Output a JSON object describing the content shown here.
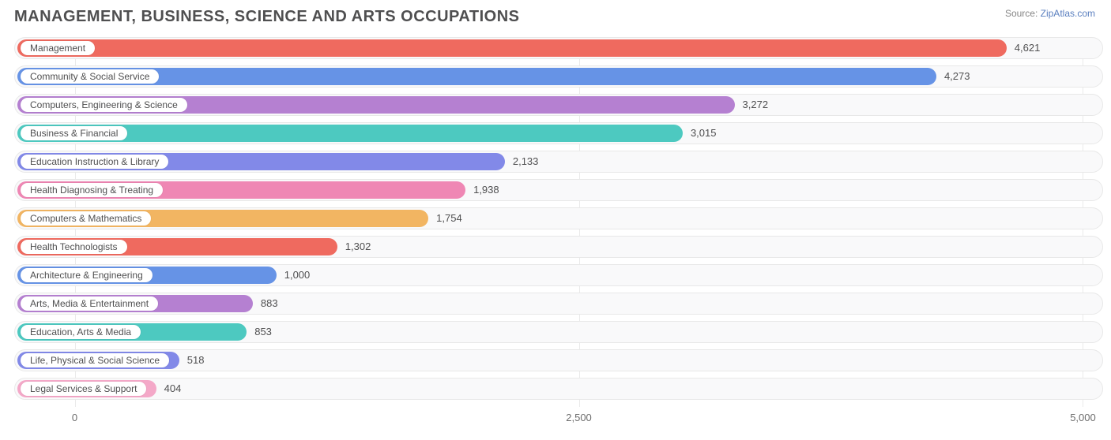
{
  "title": "MANAGEMENT, BUSINESS, SCIENCE AND ARTS OCCUPATIONS",
  "source_prefix": "Source: ",
  "source_link": "ZipAtlas.com",
  "chart": {
    "type": "bar-horizontal",
    "xmin": -300,
    "xmax": 5100,
    "xticks": [
      0,
      2500,
      5000
    ],
    "xtick_labels": [
      "0",
      "2,500",
      "5,000"
    ],
    "track_bg": "#f9f9fa",
    "track_border": "#e8e8e8",
    "grid_color": "#eaeaea",
    "text_color": "#4f4f50",
    "colors": {
      "red": "#ef6a5f",
      "blue": "#6693e6",
      "purple": "#b580d1",
      "teal": "#4dc9c0",
      "indigo": "#8289e8",
      "pink": "#ef87b4",
      "orange": "#f2b562",
      "lightpink": "#f4a8c8"
    },
    "bars": [
      {
        "label": "Management",
        "value": 4621,
        "value_label": "4,621",
        "color": "red"
      },
      {
        "label": "Community & Social Service",
        "value": 4273,
        "value_label": "4,273",
        "color": "blue"
      },
      {
        "label": "Computers, Engineering & Science",
        "value": 3272,
        "value_label": "3,272",
        "color": "purple"
      },
      {
        "label": "Business & Financial",
        "value": 3015,
        "value_label": "3,015",
        "color": "teal"
      },
      {
        "label": "Education Instruction & Library",
        "value": 2133,
        "value_label": "2,133",
        "color": "indigo"
      },
      {
        "label": "Health Diagnosing & Treating",
        "value": 1938,
        "value_label": "1,938",
        "color": "pink"
      },
      {
        "label": "Computers & Mathematics",
        "value": 1754,
        "value_label": "1,754",
        "color": "orange"
      },
      {
        "label": "Health Technologists",
        "value": 1302,
        "value_label": "1,302",
        "color": "red"
      },
      {
        "label": "Architecture & Engineering",
        "value": 1000,
        "value_label": "1,000",
        "color": "blue"
      },
      {
        "label": "Arts, Media & Entertainment",
        "value": 883,
        "value_label": "883",
        "color": "purple"
      },
      {
        "label": "Education, Arts & Media",
        "value": 853,
        "value_label": "853",
        "color": "teal"
      },
      {
        "label": "Life, Physical & Social Science",
        "value": 518,
        "value_label": "518",
        "color": "indigo"
      },
      {
        "label": "Legal Services & Support",
        "value": 404,
        "value_label": "404",
        "color": "lightpink"
      }
    ]
  }
}
